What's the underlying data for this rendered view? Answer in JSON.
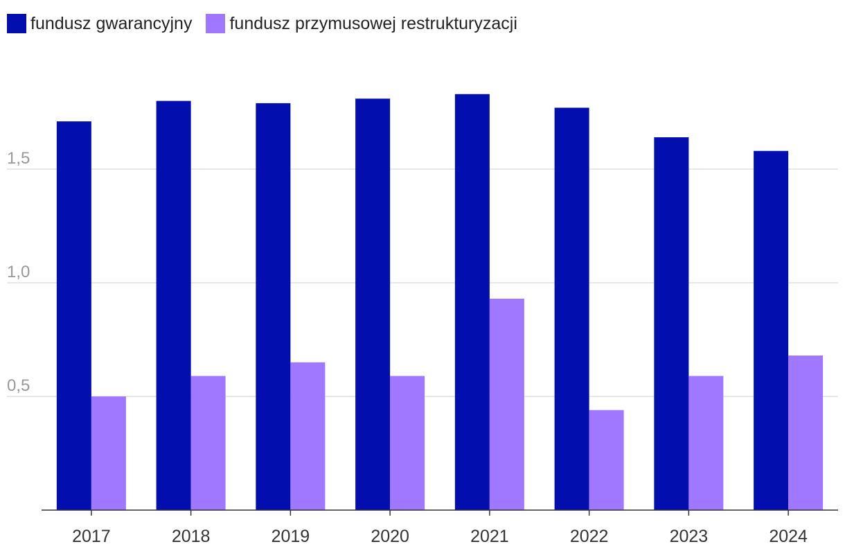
{
  "chart_data": {
    "type": "bar",
    "categories": [
      "2017",
      "2018",
      "2019",
      "2020",
      "2021",
      "2022",
      "2023",
      "2024"
    ],
    "series": [
      {
        "name": "fundusz gwarancyjny",
        "color": "#020fae",
        "values": [
          1.71,
          1.8,
          1.79,
          1.81,
          1.83,
          1.77,
          1.64,
          1.58
        ]
      },
      {
        "name": "fundusz przymusowej restrukturyzacji",
        "color": "#a078ff",
        "values": [
          0.5,
          0.59,
          0.65,
          0.59,
          0.93,
          0.44,
          0.59,
          0.68
        ]
      }
    ],
    "yticks": [
      0.5,
      1.0,
      1.5
    ],
    "ytick_labels": [
      "0,5",
      "1,0",
      "1,5"
    ],
    "ylim": [
      0,
      2.0
    ],
    "grid": true,
    "legend_position": "top-left"
  }
}
